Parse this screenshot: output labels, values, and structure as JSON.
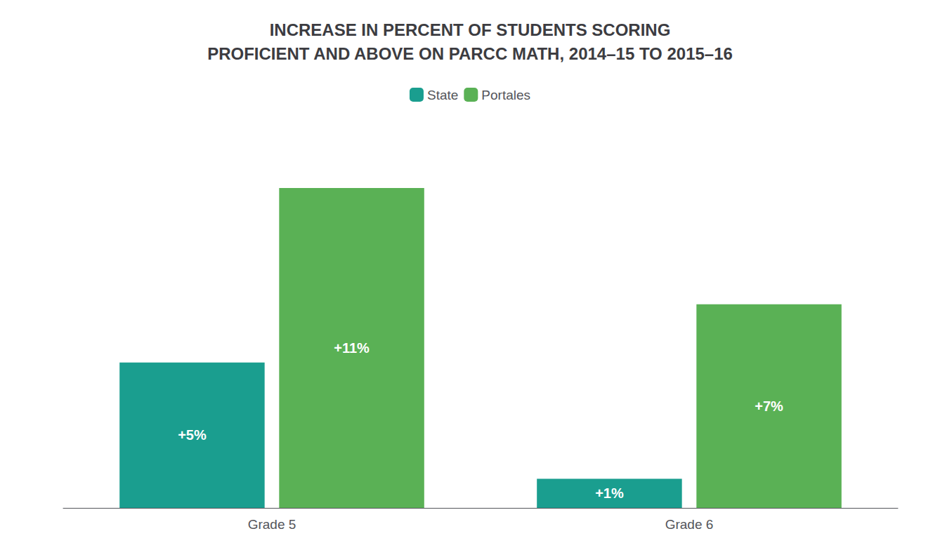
{
  "chart_data": {
    "type": "bar",
    "title": "INCREASE IN PERCENT OF STUDENTS SCORING\nPROFICIENT AND ABOVE ON PARCC MATH, 2014–15 TO 2015–16",
    "categories": [
      "Grade 5",
      "Grade 6"
    ],
    "series": [
      {
        "name": "State",
        "color": "#1a9e8f",
        "values": [
          5,
          1
        ],
        "value_labels": [
          "+5%",
          "+1%"
        ]
      },
      {
        "name": "Portales",
        "color": "#5ab155",
        "values": [
          11,
          7
        ],
        "value_labels": [
          "+11%",
          "+7%"
        ]
      }
    ],
    "ylim": [
      0,
      13
    ],
    "grid": false,
    "legend": "top",
    "data_labels": true,
    "tick_labels": "x"
  }
}
